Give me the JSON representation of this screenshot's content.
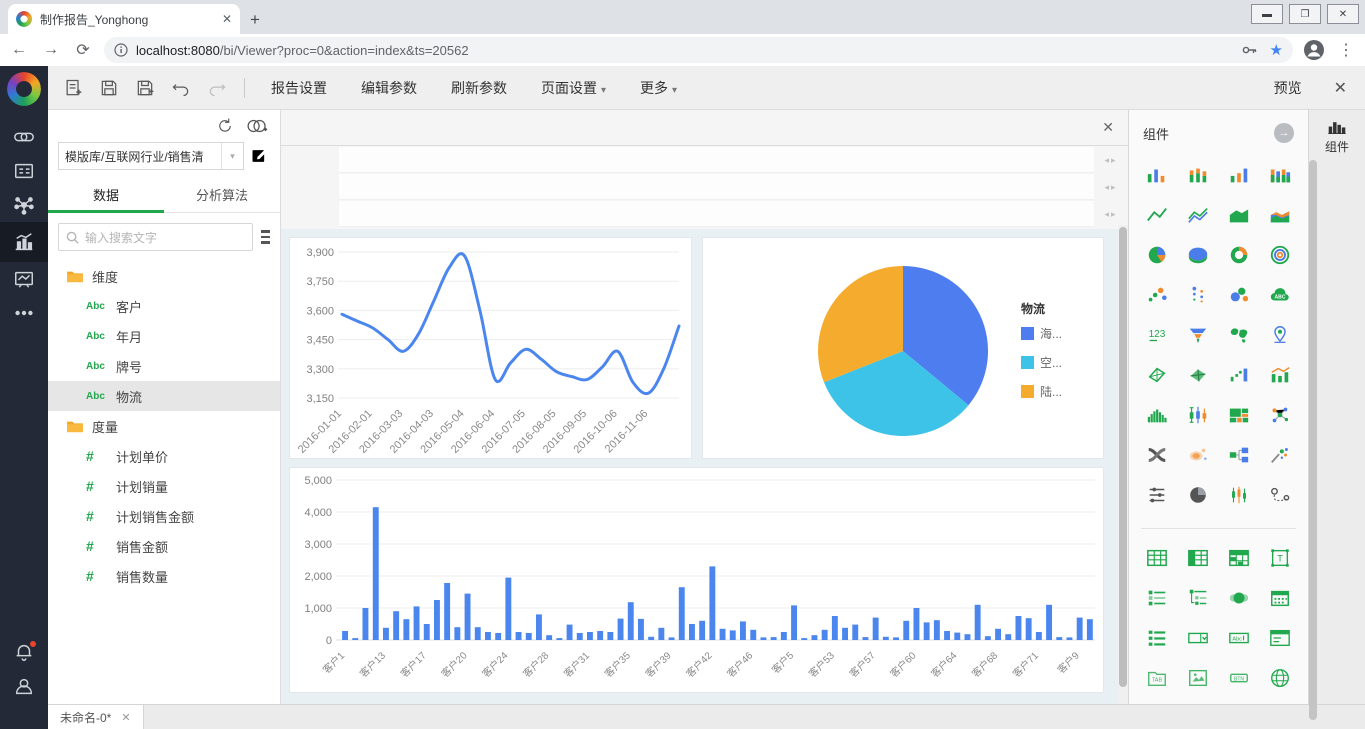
{
  "browser": {
    "tab_title": "制作报告_Yonghong",
    "url_host": "localhost:8080",
    "url_path": "/bi/Viewer?proc=0&action=index&ts=20562"
  },
  "app_toolbar": {
    "buttons": {
      "report_settings": "报告设置",
      "edit_params": "编辑参数",
      "refresh_params": "刷新参数"
    },
    "dropdowns": {
      "page_settings": "页面设置",
      "more": "更多"
    },
    "preview": "预览"
  },
  "data_panel": {
    "dataset_value": "模版库/互联网行业/销售清",
    "tabs": {
      "data": "数据",
      "analysis": "分析算法"
    },
    "active_tab": "数据",
    "search_placeholder": "输入搜索文字",
    "dimensions": {
      "folder": "维度",
      "fields": [
        "客户",
        "年月",
        "牌号",
        "物流"
      ],
      "selected": "物流",
      "field_icon": "Abc"
    },
    "measures": {
      "folder": "度量",
      "fields": [
        "计划单价",
        "计划销量",
        "计划销售金额",
        "销售金额",
        "销售数量"
      ],
      "field_icon": "#"
    }
  },
  "components_panel": {
    "title": "组件",
    "side_tab": "组件",
    "chart_icons": [
      "bar-chart",
      "stacked-bar",
      "bar-column-mix",
      "stacked-column-multi",
      "line-chart",
      "multi-line-chart",
      "area-chart",
      "stacked-area-chart",
      "pie-chart",
      "pie-3d",
      "donut-chart",
      "concentric-rings",
      "scatter-plot",
      "dot-plot",
      "bubble-chart",
      "word-cloud",
      "kpi-123",
      "funnel-chart",
      "world-map",
      "location-map",
      "radar-chart",
      "kite-chart",
      "dot-bar-combo",
      "bar-line-combo",
      "histogram",
      "box-plot",
      "treemap",
      "network-graph",
      "sankey",
      "heatmap",
      "org-chart",
      "smart-scatter",
      "slider-list",
      "moon-pie",
      "candlestick",
      "route-map"
    ],
    "control_icons": [
      "table",
      "header-table",
      "crosstab",
      "text-box",
      "check-list",
      "tree-list",
      "toggle",
      "calendar",
      "list",
      "dropdown",
      "text-input",
      "form-panel",
      "tab-container",
      "image",
      "button",
      "web-component"
    ]
  },
  "sheet_bar": {
    "tab": "未命名-0*"
  },
  "colors": {
    "accent_green": "#21a84e",
    "chart_blue": "#4a86ee",
    "pie_blue": "#4e7df0",
    "pie_cyan": "#3ec3e8",
    "pie_orange": "#f5ab2e",
    "folder_orange": "#f5a623"
  },
  "chart_data": [
    {
      "type": "line",
      "title": "",
      "x_tick_labels": [
        "2016-01-01",
        "2016-02-01",
        "2016-03-03",
        "2016-04-03",
        "2016-05-04",
        "2016-06-04",
        "2016-07-05",
        "2016-08-05",
        "2016-09-05",
        "2016-10-06",
        "2016-11-06"
      ],
      "tick_interval": 2,
      "values": [
        3580,
        3545,
        3510,
        3450,
        3390,
        3480,
        3650,
        3820,
        3880,
        3600,
        3245,
        3330,
        3400,
        3350,
        3285,
        3260,
        3245,
        3310,
        3390,
        3230,
        3175,
        3300,
        3520
      ],
      "ylim": [
        3150,
        3900
      ],
      "ytick_step": 150,
      "line_color": "#4a86ee",
      "grid": true
    },
    {
      "type": "pie",
      "legend_title": "物流",
      "legend_position": "right",
      "slices": [
        {
          "label": "海...",
          "value": 36,
          "color": "#4e7df0"
        },
        {
          "label": "空...",
          "value": 33,
          "color": "#3ec3e8"
        },
        {
          "label": "陆...",
          "value": 31,
          "color": "#f5ab2e"
        }
      ]
    },
    {
      "type": "bar",
      "title": "",
      "x_tick_labels": [
        "客户1",
        "客户13",
        "客户17",
        "客户20",
        "客户24",
        "客户28",
        "客户31",
        "客户35",
        "客户39",
        "客户42",
        "客户46",
        "客户5",
        "客户53",
        "客户57",
        "客户60",
        "客户64",
        "客户68",
        "客户71",
        "客户9"
      ],
      "tick_interval": 4,
      "values": [
        280,
        60,
        1000,
        4150,
        380,
        900,
        650,
        1050,
        500,
        1250,
        1780,
        400,
        1450,
        400,
        250,
        220,
        1950,
        250,
        220,
        800,
        150,
        60,
        480,
        220,
        250,
        280,
        250,
        670,
        1180,
        660,
        100,
        380,
        80,
        1650,
        500,
        600,
        2300,
        350,
        300,
        580,
        320,
        80,
        90,
        250,
        1080,
        60,
        150,
        320,
        750,
        380,
        480,
        90,
        700,
        100,
        80,
        600,
        1000,
        550,
        620,
        280,
        230,
        180,
        1100,
        120,
        350,
        180,
        750,
        680,
        250,
        1100,
        90,
        80,
        700,
        650
      ],
      "ylim": [
        0,
        5000
      ],
      "ytick_step": 1000,
      "bar_color": "#4a86ee",
      "grid": true
    }
  ]
}
